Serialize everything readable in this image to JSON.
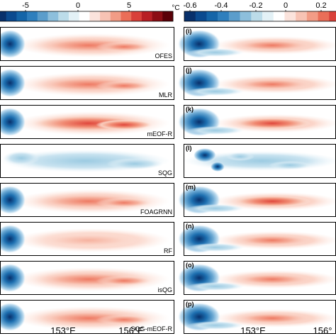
{
  "colorbar_left": {
    "ticks": [
      "-5",
      "0",
      "5"
    ],
    "colors": [
      "#08306b",
      "#0b4a8f",
      "#1565a8",
      "#2f7fbd",
      "#5b9dcb",
      "#8dbfdc",
      "#bcdce9",
      "#e3f1f6",
      "#ffffff",
      "#fbe3dc",
      "#f7c3b4",
      "#f29c86",
      "#ea6e58",
      "#d9413a",
      "#b81f24",
      "#8c0d14",
      "#5a0008"
    ]
  },
  "colorbar_right": {
    "ticks": [
      "-0.6",
      "-0.4",
      "-0.2",
      "0",
      "0.2"
    ],
    "colors": [
      "#08306b",
      "#0b4a8f",
      "#1565a8",
      "#2f7fbd",
      "#5b9dcb",
      "#8dbfdc",
      "#bcdce9",
      "#e3f1f6",
      "#ffffff",
      "#fbe3dc",
      "#f7c3b4",
      "#f29c86",
      "#ea6e58",
      "#d9413a"
    ]
  },
  "unit": "°C",
  "left_panels": [
    {
      "label": "OFES",
      "pattern": "pos"
    },
    {
      "label": "MLR",
      "pattern": "pos"
    },
    {
      "label": "mEOF-R",
      "pattern": "pos-strong"
    },
    {
      "label": "SQG",
      "pattern": "neg-weak"
    },
    {
      "label": "FOAGRNN",
      "pattern": "pos"
    },
    {
      "label": "RF",
      "pattern": "pos-weak"
    },
    {
      "label": "isQG",
      "pattern": "pos"
    },
    {
      "label": "SQG-mEOF-R",
      "pattern": "pos"
    }
  ],
  "right_panels": [
    {
      "label": "(i)",
      "pattern": "dipole"
    },
    {
      "label": "(j)",
      "pattern": "dipole"
    },
    {
      "label": "(k)",
      "pattern": "dipole-strong"
    },
    {
      "label": "(l)",
      "pattern": "noisy"
    },
    {
      "label": "(m)",
      "pattern": "dipole-strong"
    },
    {
      "label": "(n)",
      "pattern": "dipole"
    },
    {
      "label": "(o)",
      "pattern": "dipole"
    },
    {
      "label": "(p)",
      "pattern": "dipole"
    }
  ],
  "x_ticks_left": [
    "153°E",
    "156°E"
  ],
  "x_ticks_right": [
    "153°E",
    "156°"
  ]
}
